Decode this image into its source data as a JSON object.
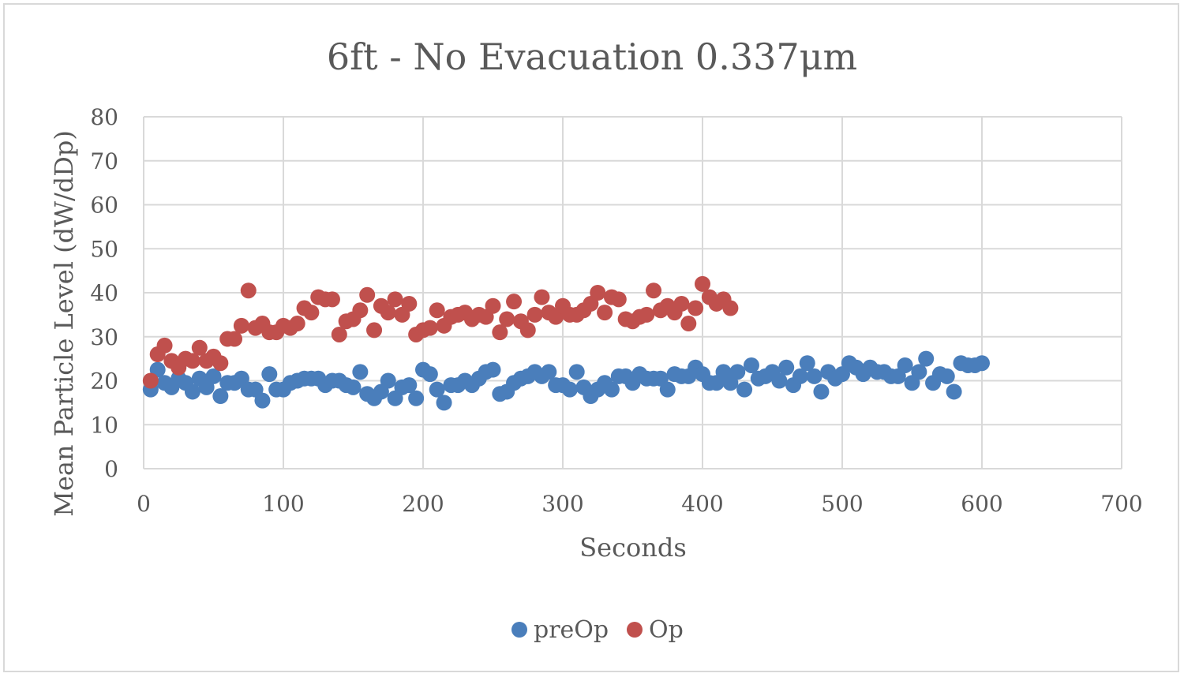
{
  "chart_data": {
    "type": "scatter",
    "title": "6ft - No Evacuation 0.337μm",
    "xlabel": "Seconds",
    "ylabel": "Mean Particle Level (dW/dDp)",
    "xlim": [
      0,
      700
    ],
    "ylim": [
      0,
      80
    ],
    "xticks": [
      0,
      100,
      200,
      300,
      400,
      500,
      600,
      700
    ],
    "yticks": [
      0,
      10,
      20,
      30,
      40,
      50,
      60,
      70,
      80
    ],
    "grid": true,
    "legend_position": "bottom",
    "series": [
      {
        "name": "preOp",
        "color": "#4a7ebb",
        "points": [
          [
            5,
            18
          ],
          [
            10,
            22.5
          ],
          [
            15,
            19.5
          ],
          [
            20,
            18.5
          ],
          [
            25,
            20.5
          ],
          [
            30,
            19.5
          ],
          [
            35,
            17.5
          ],
          [
            40,
            20.5
          ],
          [
            45,
            18.5
          ],
          [
            50,
            21
          ],
          [
            55,
            16.5
          ],
          [
            60,
            19.5
          ],
          [
            65,
            19.5
          ],
          [
            70,
            20.5
          ],
          [
            75,
            18
          ],
          [
            80,
            18
          ],
          [
            85,
            15.5
          ],
          [
            90,
            21.5
          ],
          [
            95,
            18
          ],
          [
            100,
            18
          ],
          [
            105,
            19.5
          ],
          [
            110,
            20
          ],
          [
            115,
            20.5
          ],
          [
            120,
            20.5
          ],
          [
            125,
            20.5
          ],
          [
            130,
            19
          ],
          [
            135,
            20
          ],
          [
            140,
            20
          ],
          [
            145,
            19
          ],
          [
            150,
            18.5
          ],
          [
            155,
            22
          ],
          [
            160,
            17
          ],
          [
            165,
            16
          ],
          [
            170,
            17.5
          ],
          [
            175,
            20
          ],
          [
            180,
            16
          ],
          [
            185,
            18.5
          ],
          [
            190,
            19
          ],
          [
            195,
            16
          ],
          [
            200,
            22.5
          ],
          [
            205,
            21.5
          ],
          [
            210,
            18
          ],
          [
            215,
            15
          ],
          [
            220,
            19
          ],
          [
            225,
            19
          ],
          [
            230,
            20
          ],
          [
            235,
            19
          ],
          [
            240,
            20.5
          ],
          [
            245,
            22
          ],
          [
            250,
            22.5
          ],
          [
            255,
            17
          ],
          [
            260,
            17.5
          ],
          [
            265,
            19.5
          ],
          [
            270,
            20.5
          ],
          [
            275,
            21
          ],
          [
            280,
            22
          ],
          [
            285,
            21
          ],
          [
            290,
            22
          ],
          [
            295,
            19
          ],
          [
            300,
            19
          ],
          [
            305,
            18
          ],
          [
            310,
            22
          ],
          [
            315,
            18.5
          ],
          [
            320,
            16.5
          ],
          [
            325,
            18
          ],
          [
            330,
            19.5
          ],
          [
            335,
            18
          ],
          [
            340,
            21
          ],
          [
            345,
            21
          ],
          [
            350,
            19.5
          ],
          [
            355,
            21.5
          ],
          [
            360,
            20.5
          ],
          [
            365,
            20.5
          ],
          [
            370,
            20.5
          ],
          [
            375,
            18
          ],
          [
            380,
            21.5
          ],
          [
            385,
            21
          ],
          [
            390,
            21
          ],
          [
            395,
            23
          ],
          [
            400,
            21.5
          ],
          [
            405,
            19.5
          ],
          [
            410,
            19.5
          ],
          [
            415,
            22
          ],
          [
            420,
            19.5
          ],
          [
            425,
            22
          ],
          [
            430,
            18
          ],
          [
            435,
            23.5
          ],
          [
            440,
            20.5
          ],
          [
            445,
            21
          ],
          [
            450,
            22
          ],
          [
            455,
            20
          ],
          [
            460,
            23
          ],
          [
            465,
            19
          ],
          [
            470,
            21
          ],
          [
            475,
            24
          ],
          [
            480,
            21
          ],
          [
            485,
            17.5
          ],
          [
            490,
            22
          ],
          [
            495,
            20.5
          ],
          [
            500,
            21.5
          ],
          [
            505,
            24
          ],
          [
            510,
            23
          ],
          [
            515,
            21.5
          ],
          [
            520,
            23
          ],
          [
            525,
            22
          ],
          [
            530,
            22
          ],
          [
            535,
            21
          ],
          [
            540,
            21
          ],
          [
            545,
            23.5
          ],
          [
            550,
            19.5
          ],
          [
            555,
            22
          ],
          [
            560,
            25
          ],
          [
            565,
            19.5
          ],
          [
            570,
            21.5
          ],
          [
            575,
            21
          ],
          [
            580,
            17.5
          ],
          [
            585,
            24
          ],
          [
            590,
            23.5
          ],
          [
            595,
            23.5
          ],
          [
            600,
            24
          ]
        ]
      },
      {
        "name": "Op",
        "color": "#c0504d",
        "points": [
          [
            5,
            20
          ],
          [
            10,
            26
          ],
          [
            15,
            28
          ],
          [
            20,
            24.5
          ],
          [
            25,
            23
          ],
          [
            30,
            25
          ],
          [
            35,
            24.5
          ],
          [
            40,
            27.5
          ],
          [
            45,
            24.5
          ],
          [
            50,
            25.5
          ],
          [
            55,
            24
          ],
          [
            60,
            29.5
          ],
          [
            65,
            29.5
          ],
          [
            70,
            32.5
          ],
          [
            75,
            40.5
          ],
          [
            80,
            32
          ],
          [
            85,
            33
          ],
          [
            90,
            31
          ],
          [
            95,
            31
          ],
          [
            100,
            32.5
          ],
          [
            105,
            32
          ],
          [
            110,
            33
          ],
          [
            115,
            36.5
          ],
          [
            120,
            35.5
          ],
          [
            125,
            39
          ],
          [
            130,
            38.5
          ],
          [
            135,
            38.5
          ],
          [
            140,
            30.5
          ],
          [
            145,
            33.5
          ],
          [
            150,
            34
          ],
          [
            155,
            36
          ],
          [
            160,
            39.5
          ],
          [
            165,
            31.5
          ],
          [
            170,
            37
          ],
          [
            175,
            35.5
          ],
          [
            180,
            38.5
          ],
          [
            185,
            35
          ],
          [
            190,
            37.5
          ],
          [
            195,
            30.5
          ],
          [
            200,
            31.5
          ],
          [
            205,
            32
          ],
          [
            210,
            36
          ],
          [
            215,
            32.5
          ],
          [
            220,
            34.5
          ],
          [
            225,
            35
          ],
          [
            230,
            35.5
          ],
          [
            235,
            34
          ],
          [
            240,
            35
          ],
          [
            245,
            34.5
          ],
          [
            250,
            37
          ],
          [
            255,
            31
          ],
          [
            260,
            34
          ],
          [
            265,
            38
          ],
          [
            270,
            33.5
          ],
          [
            275,
            31.5
          ],
          [
            280,
            35
          ],
          [
            285,
            39
          ],
          [
            290,
            35.5
          ],
          [
            295,
            34.5
          ],
          [
            300,
            37
          ],
          [
            305,
            35
          ],
          [
            310,
            35
          ],
          [
            315,
            36
          ],
          [
            320,
            37.5
          ],
          [
            325,
            40
          ],
          [
            330,
            35.5
          ],
          [
            335,
            39
          ],
          [
            340,
            38.5
          ],
          [
            345,
            34
          ],
          [
            350,
            33.5
          ],
          [
            355,
            34.5
          ],
          [
            360,
            35
          ],
          [
            365,
            40.5
          ],
          [
            370,
            36
          ],
          [
            375,
            37
          ],
          [
            380,
            35.5
          ],
          [
            385,
            37.5
          ],
          [
            390,
            33
          ],
          [
            395,
            36.5
          ],
          [
            400,
            42
          ],
          [
            405,
            39
          ],
          [
            410,
            37.5
          ],
          [
            415,
            38.5
          ],
          [
            420,
            36.5
          ]
        ]
      }
    ]
  }
}
